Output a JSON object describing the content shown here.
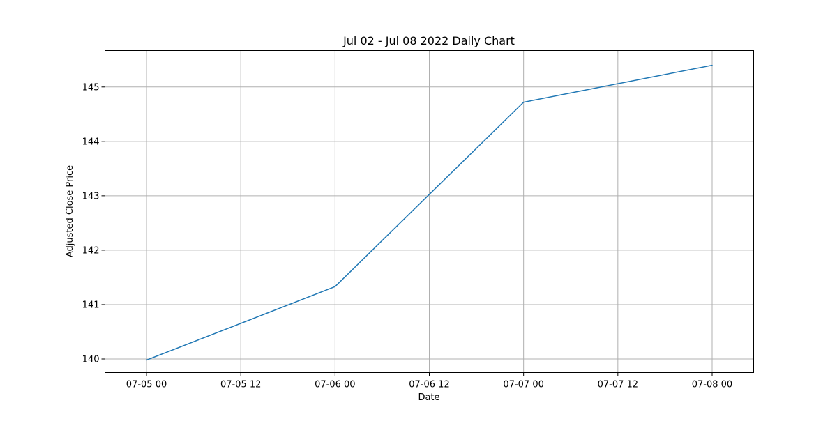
{
  "chart_data": {
    "type": "line",
    "title": "Jul 02 - Jul 08 2022 Daily Chart",
    "xlabel": "Date",
    "ylabel": "Adjusted Close Price",
    "x": [
      "2022-07-05",
      "2022-07-06",
      "2022-07-07",
      "2022-07-08"
    ],
    "series": [
      {
        "name": "",
        "color": "#1f77b4",
        "values": [
          139.98,
          141.33,
          144.72,
          145.4
        ]
      }
    ],
    "xlim": [
      "2022-07-04 18:43",
      "2022-07-08 05:17"
    ],
    "ylim": [
      139.75,
      145.67
    ],
    "x_ticks": [
      {
        "value": "2022-07-05 00:00",
        "label": "07-05 00"
      },
      {
        "value": "2022-07-05 12:00",
        "label": "07-05 12"
      },
      {
        "value": "2022-07-06 00:00",
        "label": "07-06 00"
      },
      {
        "value": "2022-07-06 12:00",
        "label": "07-06 12"
      },
      {
        "value": "2022-07-07 00:00",
        "label": "07-07 00"
      },
      {
        "value": "2022-07-07 12:00",
        "label": "07-07 12"
      },
      {
        "value": "2022-07-08 00:00",
        "label": "07-08 00"
      }
    ],
    "y_ticks": [
      140,
      141,
      142,
      143,
      144,
      145
    ],
    "grid": true,
    "legend": "none"
  }
}
